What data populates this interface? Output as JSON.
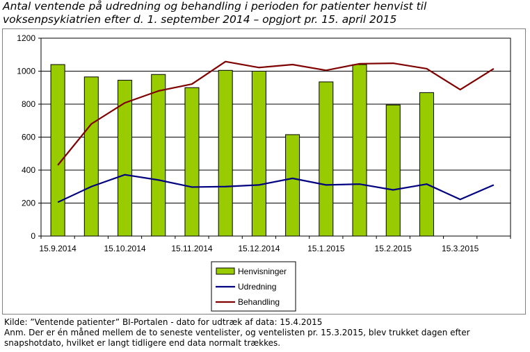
{
  "title_line1": "Antal ventende på udredning og behandling i perioden for patienter henvist til",
  "title_line2": "voksenpsykiatrien efter d. 1. september 2014 – opgjort pr. 15. april 2015",
  "source_line1": "Kilde: ”Ventende patienter” BI-Portalen - dato for udtræk af data: 15.4.2015",
  "source_line2": "Anm. Der er én måned mellem de to seneste ventelister, og ventelisten pr. 15.3.2015, blev trukket dagen efter",
  "source_line3": "snapshotdato, hvilket er langt tidligere end data normalt trækkes.",
  "chart_data": {
    "type": "bar",
    "x_tick_labels": [
      "15.9.2014",
      "15.10.2014",
      "15.11.2014",
      "15.12.2014",
      "15.1.2015",
      "15.2.2015",
      "15.3.2015"
    ],
    "ylim": [
      0,
      1200
    ],
    "yticks": [
      0,
      200,
      400,
      600,
      800,
      1000,
      1200
    ],
    "grid": true,
    "legend_position": "bottom",
    "series": [
      {
        "name": "Henvisninger",
        "kind": "bar",
        "color": "#99cc00",
        "values": [
          1040,
          965,
          945,
          980,
          900,
          1005,
          1000,
          615,
          935,
          1040,
          795,
          870,
          null,
          null
        ]
      },
      {
        "name": "Udredning",
        "kind": "line",
        "color": "#000080",
        "values": [
          205,
          300,
          372,
          340,
          297,
          300,
          310,
          350,
          310,
          315,
          280,
          315,
          222,
          310
        ]
      },
      {
        "name": "Behandling",
        "kind": "line",
        "color": "#800000",
        "values": [
          430,
          680,
          808,
          880,
          922,
          1058,
          1022,
          1040,
          1005,
          1045,
          1048,
          1015,
          888,
          1015
        ]
      }
    ]
  }
}
